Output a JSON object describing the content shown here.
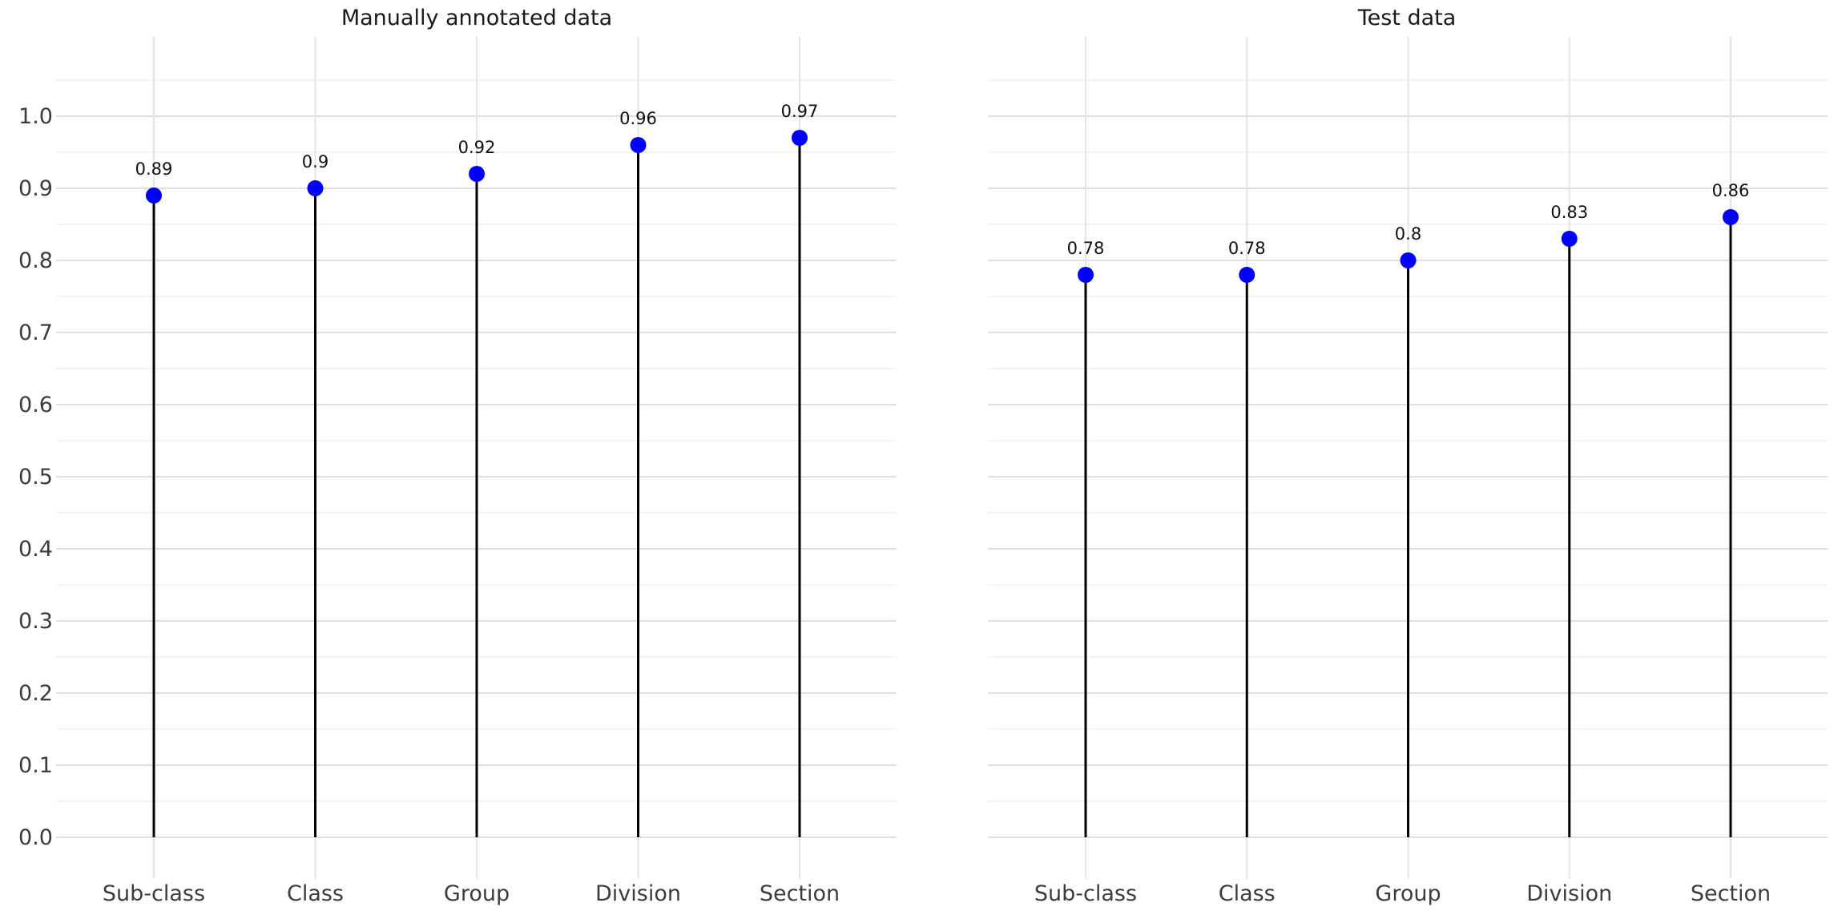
{
  "colors": {
    "background": "#ffffff",
    "marker": "#0000ff",
    "stem": "#000000",
    "value_label": "#111111",
    "tick_label": "#3c3c3c",
    "title": "#1a1a1a",
    "grid_major": "#dfdfdf",
    "grid_minor": "#f4f4f4",
    "grid_vertical": "#e4e4e4"
  },
  "chart_data": [
    {
      "type": "stem",
      "title": "Manually annotated data",
      "categories": [
        "Sub-class",
        "Class",
        "Group",
        "Division",
        "Section"
      ],
      "values": [
        0.89,
        0.9,
        0.92,
        0.96,
        0.97
      ],
      "point_labels": [
        "0.89",
        "0.9",
        "0.92",
        "0.96",
        "0.97"
      ],
      "xlabel": "",
      "ylabel": "",
      "ylim": [
        -0.06,
        1.11
      ],
      "yticks": [
        0.0,
        0.1,
        0.2,
        0.3,
        0.4,
        0.5,
        0.6,
        0.7,
        0.8,
        0.9,
        1.0
      ],
      "ytick_labels": [
        "0.0",
        "0.1",
        "0.2",
        "0.3",
        "0.4",
        "0.5",
        "0.6",
        "0.7",
        "0.8",
        "0.9",
        "1.0"
      ],
      "show_y_tick_labels": true,
      "grid": true,
      "legend": null,
      "marker_style": "circle",
      "stem_baseline": 0.0
    },
    {
      "type": "stem",
      "title": "Test data",
      "categories": [
        "Sub-class",
        "Class",
        "Group",
        "Division",
        "Section"
      ],
      "values": [
        0.78,
        0.78,
        0.8,
        0.83,
        0.86
      ],
      "point_labels": [
        "0.78",
        "0.78",
        "0.8",
        "0.83",
        "0.86"
      ],
      "xlabel": "",
      "ylabel": "",
      "ylim": [
        -0.06,
        1.11
      ],
      "yticks": [
        0.0,
        0.1,
        0.2,
        0.3,
        0.4,
        0.5,
        0.6,
        0.7,
        0.8,
        0.9,
        1.0
      ],
      "ytick_labels": [
        "0.0",
        "0.1",
        "0.2",
        "0.3",
        "0.4",
        "0.5",
        "0.6",
        "0.7",
        "0.8",
        "0.9",
        "1.0"
      ],
      "show_y_tick_labels": false,
      "grid": true,
      "legend": null,
      "marker_style": "circle",
      "stem_baseline": 0.0
    }
  ]
}
